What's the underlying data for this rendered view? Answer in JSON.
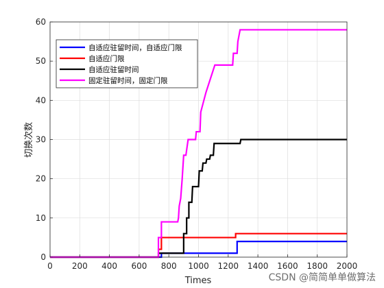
{
  "chart_data": {
    "type": "line",
    "title": "",
    "xlabel": "Times",
    "ylabel": "切换次数",
    "xlim": [
      0,
      2000
    ],
    "ylim": [
      0,
      60
    ],
    "xticks": [
      0,
      200,
      400,
      600,
      800,
      1000,
      1200,
      1400,
      1600,
      1800,
      2000
    ],
    "yticks": [
      0,
      10,
      20,
      30,
      40,
      50,
      60
    ],
    "grid": true,
    "legend_position": "top-left",
    "series": [
      {
        "name": "自适应驻留时间，自适应门限",
        "color": "#0000ff",
        "points": [
          [
            0,
            0
          ],
          [
            750,
            0
          ],
          [
            750,
            1
          ],
          [
            1260,
            1
          ],
          [
            1260,
            4
          ],
          [
            2000,
            4
          ]
        ]
      },
      {
        "name": "自适应门限",
        "color": "#ff0000",
        "points": [
          [
            0,
            0
          ],
          [
            730,
            0
          ],
          [
            730,
            2
          ],
          [
            750,
            2
          ],
          [
            750,
            5
          ],
          [
            1250,
            5
          ],
          [
            1250,
            6
          ],
          [
            2000,
            6
          ]
        ]
      },
      {
        "name": "自适应驻留时间",
        "color": "#000000",
        "points": [
          [
            0,
            0
          ],
          [
            730,
            0
          ],
          [
            730,
            1
          ],
          [
            900,
            1
          ],
          [
            900,
            6
          ],
          [
            920,
            6
          ],
          [
            920,
            10
          ],
          [
            935,
            10
          ],
          [
            935,
            14
          ],
          [
            955,
            14
          ],
          [
            960,
            18
          ],
          [
            1000,
            18
          ],
          [
            1005,
            22
          ],
          [
            1025,
            22
          ],
          [
            1030,
            24
          ],
          [
            1050,
            24
          ],
          [
            1055,
            25
          ],
          [
            1075,
            25
          ],
          [
            1080,
            26
          ],
          [
            1100,
            26
          ],
          [
            1105,
            29
          ],
          [
            1280,
            29
          ],
          [
            1285,
            30
          ],
          [
            2000,
            30
          ]
        ]
      },
      {
        "name": "固定驻留时间，固定门限",
        "color": "#ff00ff",
        "points": [
          [
            0,
            0
          ],
          [
            730,
            0
          ],
          [
            730,
            5
          ],
          [
            750,
            5
          ],
          [
            750,
            9
          ],
          [
            860,
            9
          ],
          [
            865,
            10
          ],
          [
            870,
            13
          ],
          [
            880,
            15
          ],
          [
            890,
            20
          ],
          [
            900,
            26
          ],
          [
            915,
            26
          ],
          [
            930,
            30
          ],
          [
            980,
            30
          ],
          [
            985,
            32
          ],
          [
            1010,
            32
          ],
          [
            1015,
            37
          ],
          [
            1050,
            42
          ],
          [
            1110,
            49
          ],
          [
            1230,
            49
          ],
          [
            1235,
            52
          ],
          [
            1260,
            52
          ],
          [
            1265,
            55
          ],
          [
            1280,
            58
          ],
          [
            2000,
            58
          ]
        ]
      }
    ]
  },
  "watermark": "CSDN @简简单单做算法"
}
